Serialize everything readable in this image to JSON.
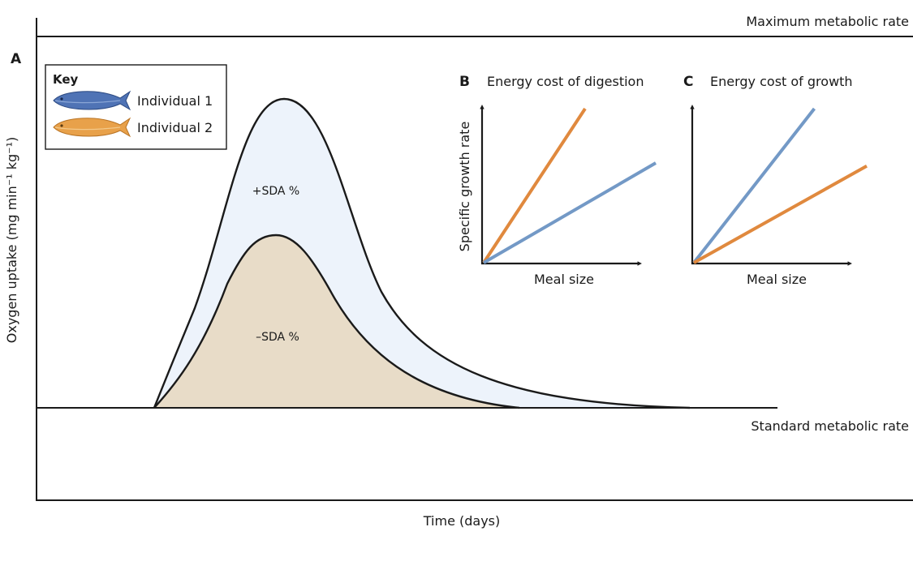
{
  "panels": {
    "a": "A",
    "b": "B",
    "c": "C"
  },
  "main_plot": {
    "y_label": "Oxygen uptake (mg  min⁻¹ kg⁻¹)",
    "x_label": "Time (days)",
    "max_line_label": "Maximum metabolic rate",
    "std_line_label": "Standard metabolic rate",
    "upper_area_label": "+SDA %",
    "lower_area_label": "–SDA %",
    "upper_fill": "#edf3fb",
    "lower_fill": "#e8dcc8"
  },
  "key": {
    "title": "Key",
    "items": [
      {
        "label": "Individual 1",
        "color": "#5b7fc0",
        "icon": "fish-icon"
      },
      {
        "label": "Individual 2",
        "color": "#e8a14a",
        "icon": "fish-icon"
      }
    ]
  },
  "inset_b": {
    "title": "Energy cost of digestion",
    "y_label": "Specific growth rate",
    "x_label": "Meal size",
    "lines": [
      {
        "series": "Individual 2",
        "color": "#e0893e",
        "slope": 1.52
      },
      {
        "series": "Individual 1",
        "color": "#7399c6",
        "slope": 0.58
      }
    ]
  },
  "inset_c": {
    "title": "Energy cost of growth",
    "x_label": "Meal size",
    "lines": [
      {
        "series": "Individual 1",
        "color": "#7399c6",
        "slope": 1.28
      },
      {
        "series": "Individual 2",
        "color": "#e0893e",
        "slope": 0.56
      }
    ]
  }
}
